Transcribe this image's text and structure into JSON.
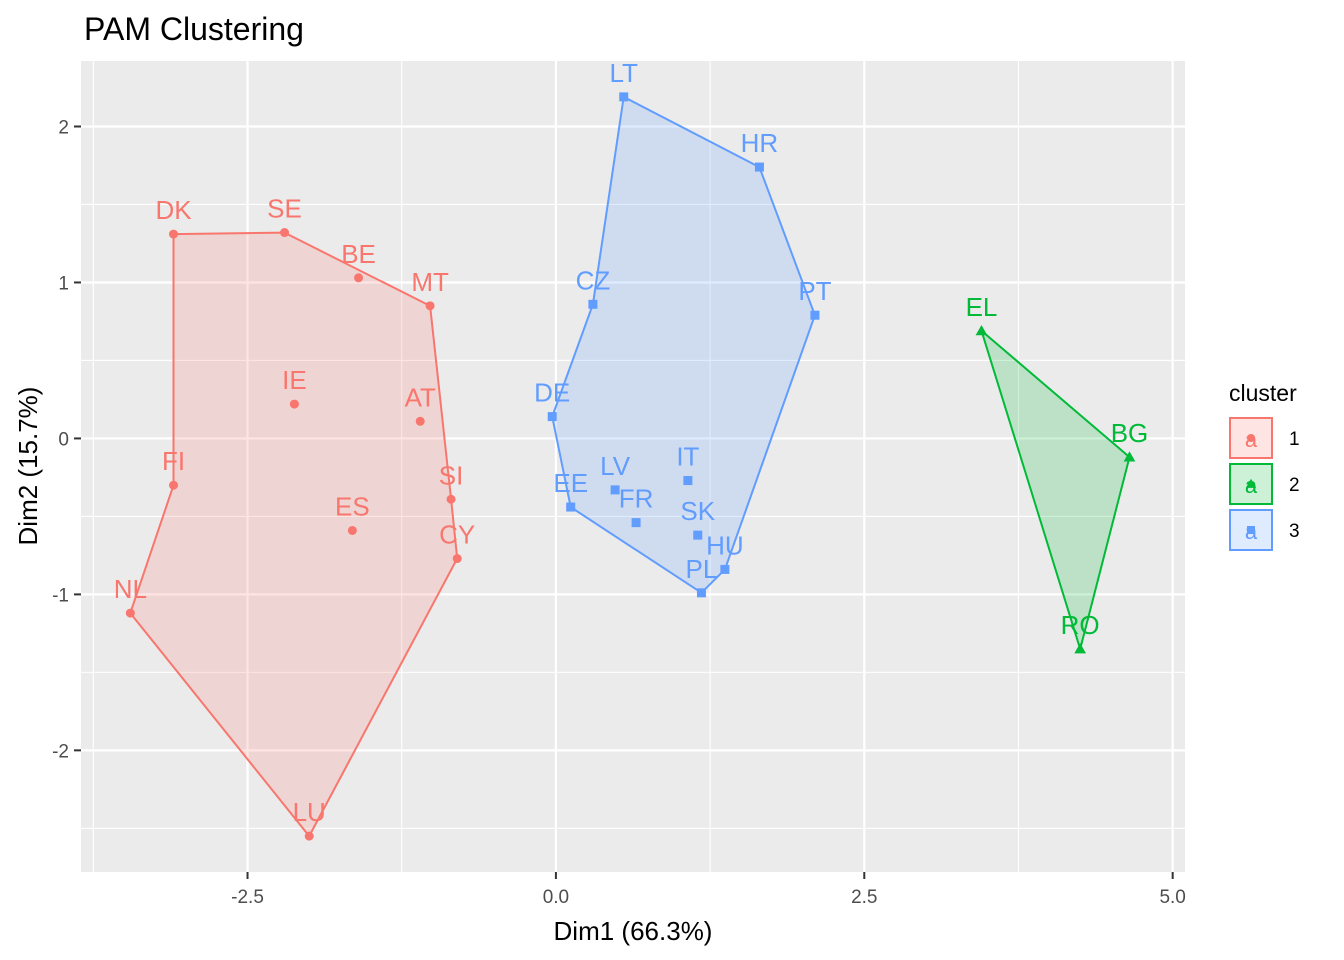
{
  "chart_data": {
    "type": "scatter",
    "title": "PAM Clustering",
    "xlabel": "Dim1 (66.3%)",
    "ylabel": "Dim2 (15.7%)",
    "xlim": [
      -3.85,
      5.1
    ],
    "ylim": [
      -2.78,
      2.42
    ],
    "x_ticks": [
      -2.5,
      0.0,
      2.5,
      5.0
    ],
    "x_tick_labels": [
      "-2.5",
      "0.0",
      "2.5",
      "5.0"
    ],
    "y_ticks": [
      -2,
      -1,
      0,
      1,
      2
    ],
    "y_tick_labels": [
      "-2",
      "-1",
      "0",
      "1",
      "2"
    ],
    "grid": true,
    "legend": {
      "title": "cluster",
      "position": "right",
      "key_letter": "a",
      "entries": [
        "1",
        "2",
        "3"
      ]
    },
    "series": [
      {
        "name": "1",
        "color": "#F8766D",
        "marker": "circle",
        "points": [
          {
            "label": "DK",
            "x": -3.1,
            "y": 1.31
          },
          {
            "label": "SE",
            "x": -2.2,
            "y": 1.32
          },
          {
            "label": "BE",
            "x": -1.6,
            "y": 1.03
          },
          {
            "label": "MT",
            "x": -1.02,
            "y": 0.85
          },
          {
            "label": "IE",
            "x": -2.12,
            "y": 0.22
          },
          {
            "label": "AT",
            "x": -1.1,
            "y": 0.11
          },
          {
            "label": "FI",
            "x": -3.1,
            "y": -0.3
          },
          {
            "label": "SI",
            "x": -0.85,
            "y": -0.39
          },
          {
            "label": "ES",
            "x": -1.65,
            "y": -0.59
          },
          {
            "label": "CY",
            "x": -0.8,
            "y": -0.77
          },
          {
            "label": "NL",
            "x": -3.45,
            "y": -1.12
          },
          {
            "label": "LU",
            "x": -2.0,
            "y": -2.55
          }
        ],
        "hull": [
          "DK",
          "SE",
          "MT",
          "SI",
          "CY",
          "LU",
          "NL",
          "FI"
        ]
      },
      {
        "name": "2",
        "color": "#00BA38",
        "marker": "triangle",
        "points": [
          {
            "label": "EL",
            "x": 3.45,
            "y": 0.69
          },
          {
            "label": "BG",
            "x": 4.65,
            "y": -0.12
          },
          {
            "label": "RO",
            "x": 4.25,
            "y": -1.35
          }
        ],
        "hull": [
          "EL",
          "BG",
          "RO"
        ]
      },
      {
        "name": "3",
        "color": "#619CFF",
        "marker": "square",
        "points": [
          {
            "label": "LT",
            "x": 0.55,
            "y": 2.19
          },
          {
            "label": "HR",
            "x": 1.65,
            "y": 1.74
          },
          {
            "label": "PT",
            "x": 2.1,
            "y": 0.79
          },
          {
            "label": "CZ",
            "x": 0.3,
            "y": 0.86
          },
          {
            "label": "DE",
            "x": -0.03,
            "y": 0.14
          },
          {
            "label": "LV",
            "x": 0.48,
            "y": -0.33
          },
          {
            "label": "IT",
            "x": 1.07,
            "y": -0.27
          },
          {
            "label": "EE",
            "x": 0.12,
            "y": -0.44
          },
          {
            "label": "FR",
            "x": 0.65,
            "y": -0.54
          },
          {
            "label": "SK",
            "x": 1.15,
            "y": -0.62
          },
          {
            "label": "HU",
            "x": 1.37,
            "y": -0.84
          },
          {
            "label": "PL",
            "x": 1.18,
            "y": -0.99
          }
        ],
        "hull": [
          "LT",
          "HR",
          "PT",
          "HU",
          "PL",
          "EE",
          "DE",
          "CZ"
        ]
      }
    ]
  }
}
